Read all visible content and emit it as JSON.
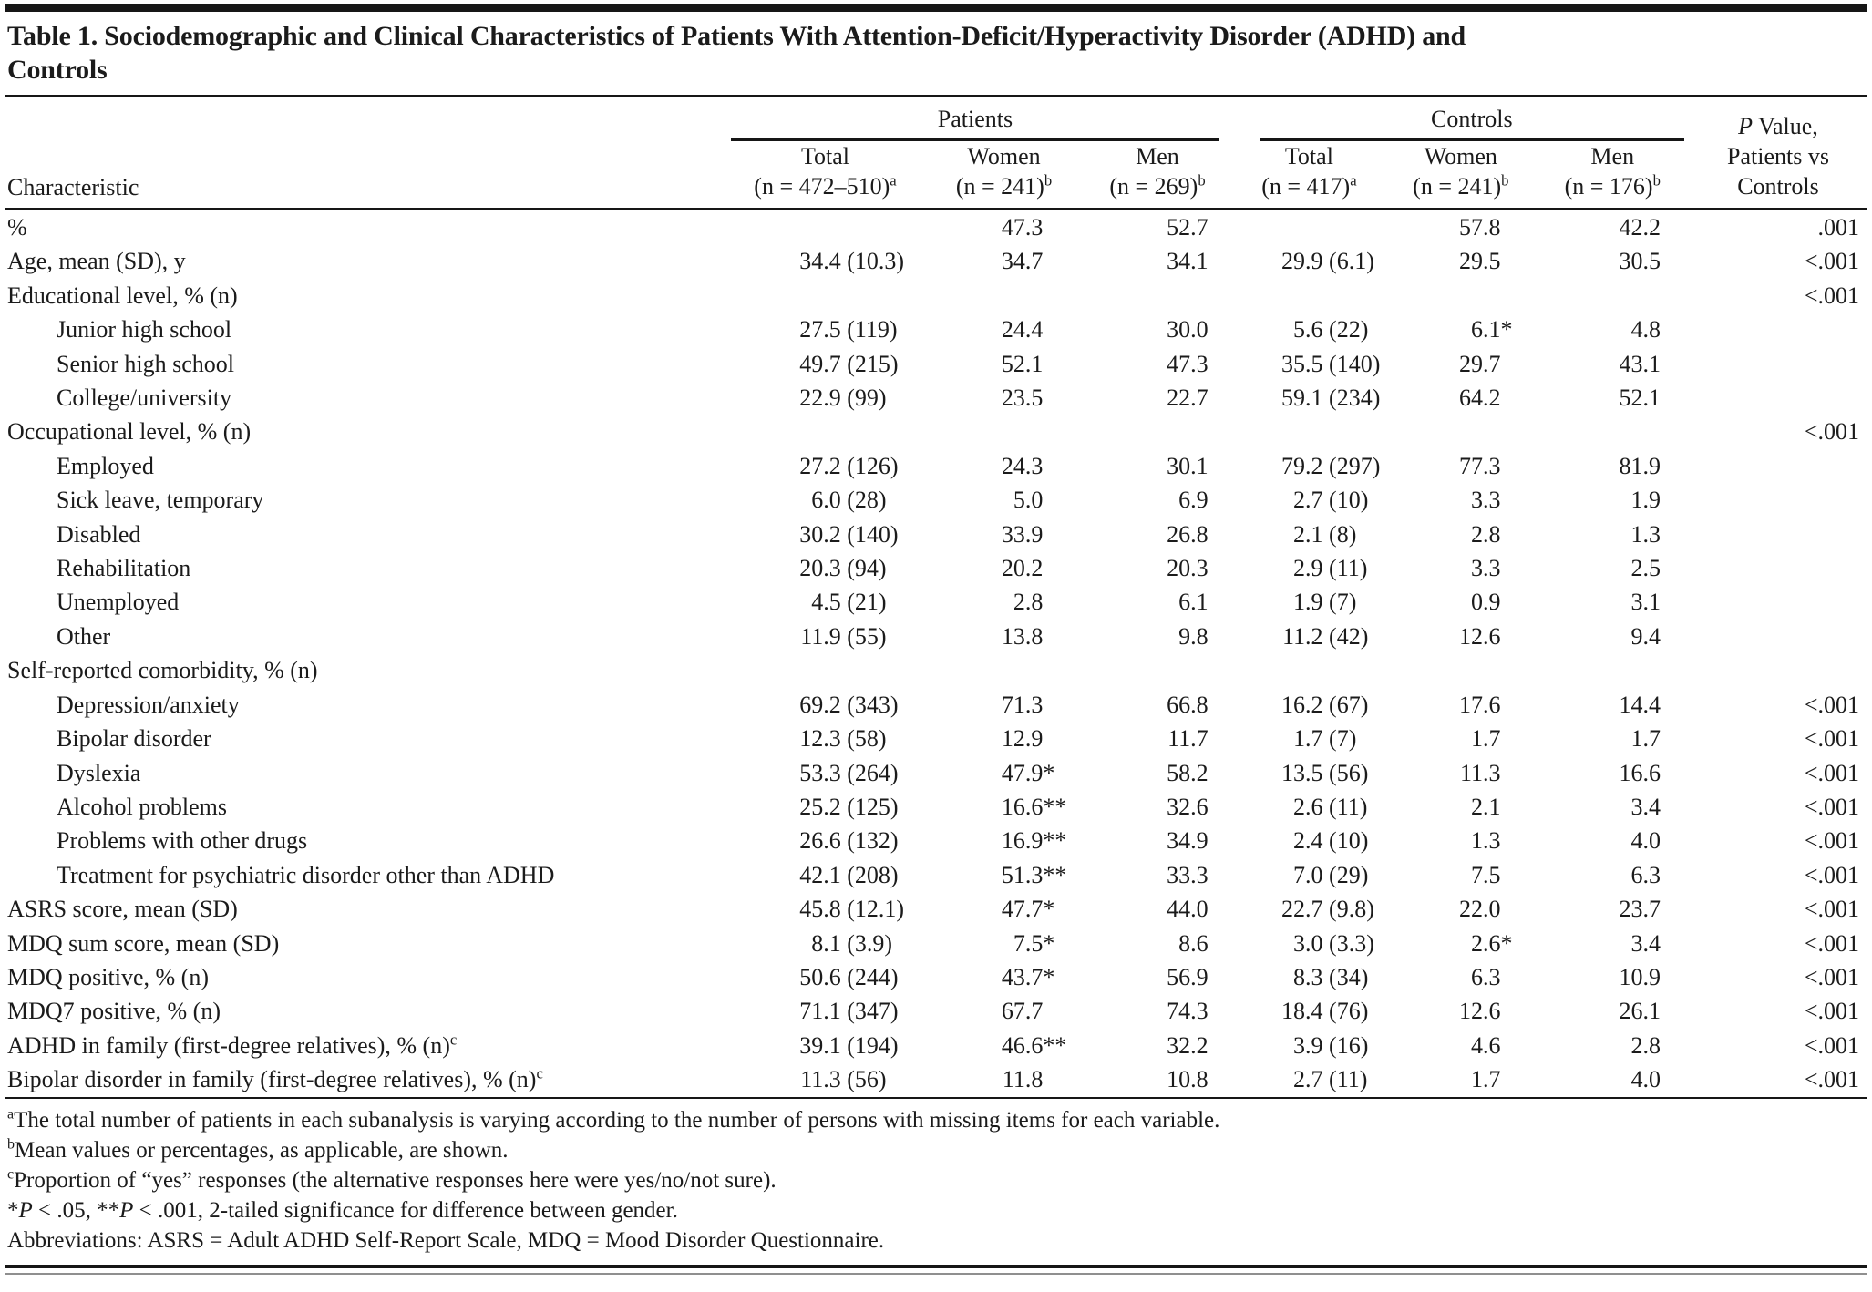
{
  "title_lines": [
    "Table 1. Sociodemographic and Clinical Characteristics of Patients With Attention-Deficit/Hyperactivity Disorder (ADHD) and",
    "Controls"
  ],
  "table": {
    "char_header": "Characteristic",
    "group_headers": {
      "patients": "Patients",
      "controls": "Controls"
    },
    "pvalue_header": {
      "p": "P",
      "rest": " Value,",
      "line2": "Patients vs",
      "line3": "Controls"
    },
    "columns": [
      {
        "line1": "Total",
        "line2": "(n = 472–510)",
        "sup": "a"
      },
      {
        "line1": "Women",
        "line2": "(n = 241)",
        "sup": "b"
      },
      {
        "line1": "Men",
        "line2": "(n = 269)",
        "sup": "b"
      },
      {
        "line1": "Total",
        "line2": "(n = 417)",
        "sup": "a"
      },
      {
        "line1": "Women",
        "line2": "(n = 241)",
        "sup": "b"
      },
      {
        "line1": "Men",
        "line2": "(n = 176)",
        "sup": "b"
      }
    ],
    "rows": [
      {
        "label": "%",
        "indent": 0,
        "sup": "",
        "cells": [
          "",
          "47.3",
          "52.7",
          "",
          "57.8",
          "42.2",
          ".001"
        ]
      },
      {
        "label": "Age, mean (SD), y",
        "indent": 0,
        "sup": "",
        "cells": [
          "34.4 (10.3)",
          "34.7",
          "34.1",
          "29.9 (6.1)",
          "29.5",
          "30.5",
          "<.001"
        ]
      },
      {
        "label": "Educational level, % (n)",
        "indent": 0,
        "sup": "",
        "cells": [
          "",
          "",
          "",
          "",
          "",
          "",
          "<.001"
        ]
      },
      {
        "label": "Junior high school",
        "indent": 1,
        "sup": "",
        "cells": [
          "27.5 (119)",
          "24.4",
          "30.0",
          "5.6 (22)",
          "6.1*",
          "4.8",
          ""
        ]
      },
      {
        "label": "Senior high school",
        "indent": 1,
        "sup": "",
        "cells": [
          "49.7 (215)",
          "52.1",
          "47.3",
          "35.5 (140)",
          "29.7",
          "43.1",
          ""
        ]
      },
      {
        "label": "College/university",
        "indent": 1,
        "sup": "",
        "cells": [
          "22.9 (99)",
          "23.5",
          "22.7",
          "59.1 (234)",
          "64.2",
          "52.1",
          ""
        ]
      },
      {
        "label": "Occupational level, % (n)",
        "indent": 0,
        "sup": "",
        "cells": [
          "",
          "",
          "",
          "",
          "",
          "",
          "<.001"
        ]
      },
      {
        "label": "Employed",
        "indent": 1,
        "sup": "",
        "cells": [
          "27.2 (126)",
          "24.3",
          "30.1",
          "79.2 (297)",
          "77.3",
          "81.9",
          ""
        ]
      },
      {
        "label": "Sick leave, temporary",
        "indent": 1,
        "sup": "",
        "cells": [
          "6.0 (28)",
          "5.0",
          "6.9",
          "2.7 (10)",
          "3.3",
          "1.9",
          ""
        ]
      },
      {
        "label": "Disabled",
        "indent": 1,
        "sup": "",
        "cells": [
          "30.2 (140)",
          "33.9",
          "26.8",
          "2.1 (8)",
          "2.8",
          "1.3",
          ""
        ]
      },
      {
        "label": "Rehabilitation",
        "indent": 1,
        "sup": "",
        "cells": [
          "20.3 (94)",
          "20.2",
          "20.3",
          "2.9 (11)",
          "3.3",
          "2.5",
          ""
        ]
      },
      {
        "label": "Unemployed",
        "indent": 1,
        "sup": "",
        "cells": [
          "4.5 (21)",
          "2.8",
          "6.1",
          "1.9 (7)",
          "0.9",
          "3.1",
          ""
        ]
      },
      {
        "label": "Other",
        "indent": 1,
        "sup": "",
        "cells": [
          "11.9 (55)",
          "13.8",
          "9.8",
          "11.2 (42)",
          "12.6",
          "9.4",
          ""
        ]
      },
      {
        "label": "Self-reported comorbidity, % (n)",
        "indent": 0,
        "sup": "",
        "cells": [
          "",
          "",
          "",
          "",
          "",
          "",
          ""
        ]
      },
      {
        "label": "Depression/anxiety",
        "indent": 1,
        "sup": "",
        "cells": [
          "69.2 (343)",
          "71.3",
          "66.8",
          "16.2 (67)",
          "17.6",
          "14.4",
          "<.001"
        ]
      },
      {
        "label": "Bipolar disorder",
        "indent": 1,
        "sup": "",
        "cells": [
          "12.3 (58)",
          "12.9",
          "11.7",
          "1.7 (7)",
          "1.7",
          "1.7",
          "<.001"
        ]
      },
      {
        "label": "Dyslexia",
        "indent": 1,
        "sup": "",
        "cells": [
          "53.3 (264)",
          "47.9*",
          "58.2",
          "13.5 (56)",
          "11.3",
          "16.6",
          "<.001"
        ]
      },
      {
        "label": "Alcohol problems",
        "indent": 1,
        "sup": "",
        "cells": [
          "25.2 (125)",
          "16.6**",
          "32.6",
          "2.6 (11)",
          "2.1",
          "3.4",
          "<.001"
        ]
      },
      {
        "label": "Problems with other drugs",
        "indent": 1,
        "sup": "",
        "cells": [
          "26.6 (132)",
          "16.9**",
          "34.9",
          "2.4 (10)",
          "1.3",
          "4.0",
          "<.001"
        ]
      },
      {
        "label": "Treatment for psychiatric disorder other than ADHD",
        "indent": 1,
        "sup": "",
        "cells": [
          "42.1 (208)",
          "51.3**",
          "33.3",
          "7.0 (29)",
          "7.5",
          "6.3",
          "<.001"
        ]
      },
      {
        "label": "ASRS score, mean (SD)",
        "indent": 0,
        "sup": "",
        "cells": [
          "45.8 (12.1)",
          "47.7*",
          "44.0",
          "22.7 (9.8)",
          "22.0",
          "23.7",
          "<.001"
        ]
      },
      {
        "label": "MDQ sum score, mean (SD)",
        "indent": 0,
        "sup": "",
        "cells": [
          "8.1 (3.9)",
          "7.5*",
          "8.6",
          "3.0 (3.3)",
          "2.6*",
          "3.4",
          "<.001"
        ]
      },
      {
        "label": "MDQ positive, % (n)",
        "indent": 0,
        "sup": "",
        "cells": [
          "50.6 (244)",
          "43.7*",
          "56.9",
          "8.3 (34)",
          "6.3",
          "10.9",
          "<.001"
        ]
      },
      {
        "label": "MDQ7 positive, % (n)",
        "indent": 0,
        "sup": "",
        "cells": [
          "71.1 (347)",
          "67.7",
          "74.3",
          "18.4 (76)",
          "12.6",
          "26.1",
          "<.001"
        ]
      },
      {
        "label": "ADHD in family (first-degree relatives), % (n)",
        "indent": 0,
        "sup": "c",
        "cells": [
          "39.1 (194)",
          "46.6**",
          "32.2",
          "3.9 (16)",
          "4.6",
          "2.8",
          "<.001"
        ]
      },
      {
        "label": "Bipolar disorder in family (first-degree relatives), % (n)",
        "indent": 0,
        "sup": "c",
        "cells": [
          "11.3 (56)",
          "11.8",
          "10.8",
          "2.7 (11)",
          "1.7",
          "4.0",
          "<.001"
        ]
      }
    ]
  },
  "footnotes": [
    {
      "sup": "a",
      "parts": [
        {
          "text": "The total number of patients in each subanalysis is varying according to the number of persons with missing items for each variable.",
          "italic": false
        }
      ]
    },
    {
      "sup": "b",
      "parts": [
        {
          "text": "Mean values or percentages, as applicable, are shown.",
          "italic": false
        }
      ]
    },
    {
      "sup": "c",
      "parts": [
        {
          "text": "Proportion of “yes” responses (the alternative responses here were yes/no/not sure).",
          "italic": false
        }
      ]
    },
    {
      "sup": "",
      "parts": [
        {
          "text": "*",
          "italic": false
        },
        {
          "text": "P",
          "italic": true
        },
        {
          "text": " < .05, **",
          "italic": false
        },
        {
          "text": "P",
          "italic": true
        },
        {
          "text": " < .001, 2-tailed significance for difference between gender.",
          "italic": false
        }
      ]
    },
    {
      "sup": "",
      "parts": [
        {
          "text": "Abbreviations: ASRS = Adult ADHD Self-Report Scale, MDQ = Mood Disorder Questionnaire.",
          "italic": false
        }
      ]
    }
  ]
}
